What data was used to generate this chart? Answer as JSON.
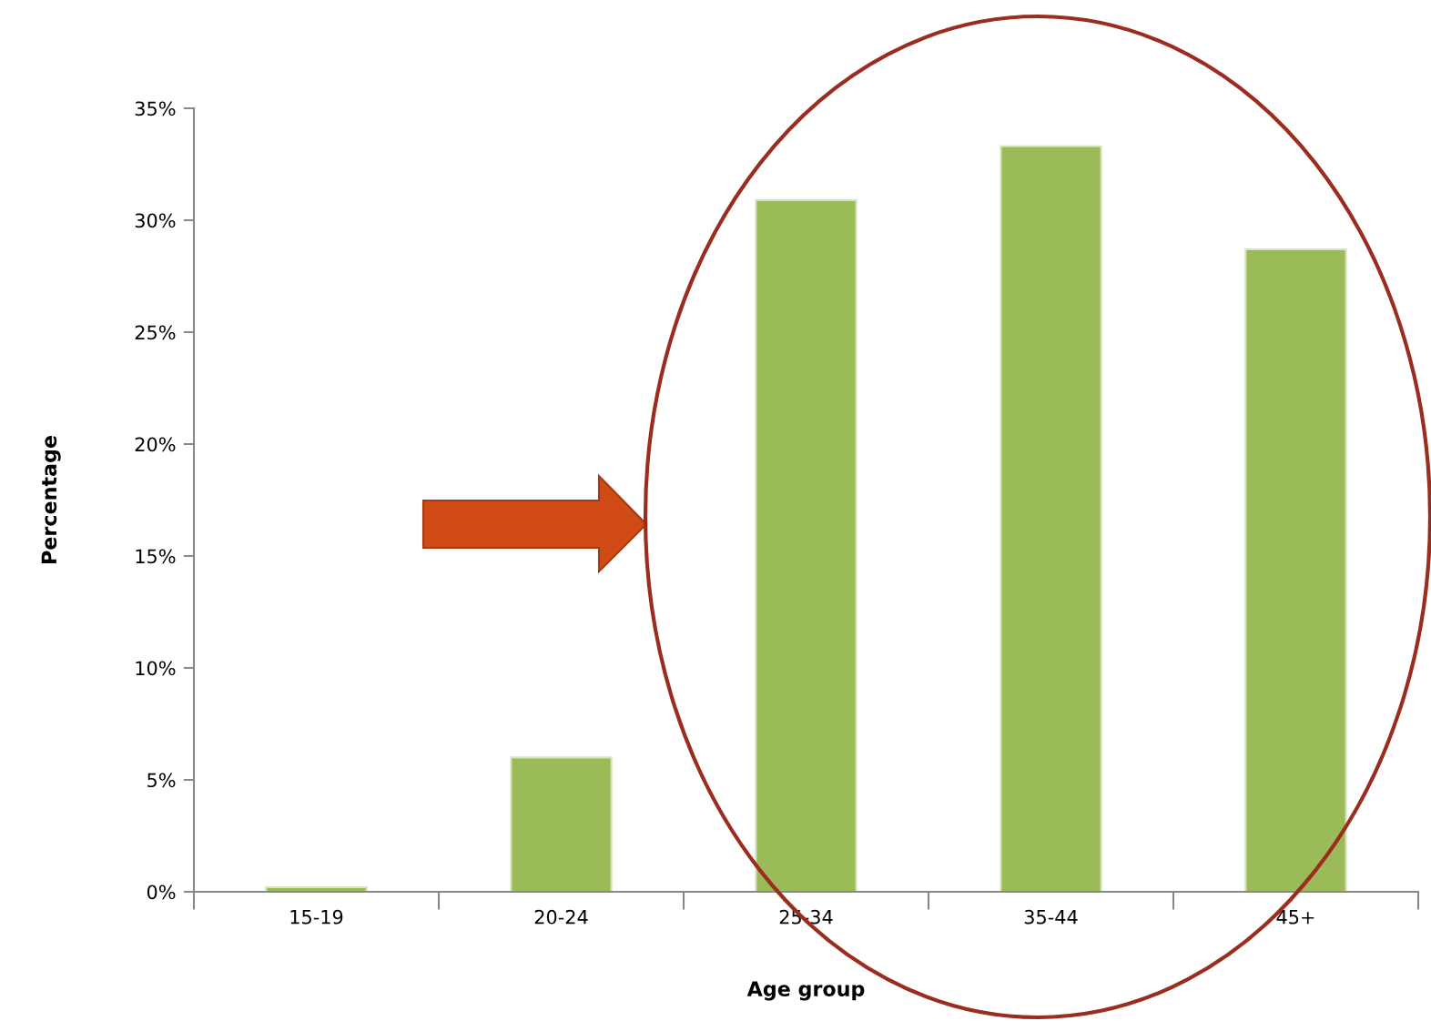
{
  "chart_data": {
    "type": "bar",
    "xlabel": "Age group",
    "ylabel": "Percentage",
    "categories": [
      "15-19",
      "20-24",
      "25-34",
      "35-44",
      "45+"
    ],
    "values": [
      0.2,
      6.0,
      30.9,
      33.3,
      28.7
    ],
    "color": "#9bbb59",
    "ylim": [
      0,
      35
    ],
    "yticks": [
      {
        "value": 0,
        "label": "0%"
      },
      {
        "value": 5,
        "label": "5%"
      },
      {
        "value": 10,
        "label": "10%"
      },
      {
        "value": 15,
        "label": "15%"
      },
      {
        "value": 20,
        "label": "20%"
      },
      {
        "value": 25,
        "label": "25%"
      },
      {
        "value": 30,
        "label": "30%"
      },
      {
        "value": 35,
        "label": "35%"
      }
    ],
    "grid": false,
    "legend": false
  }
}
